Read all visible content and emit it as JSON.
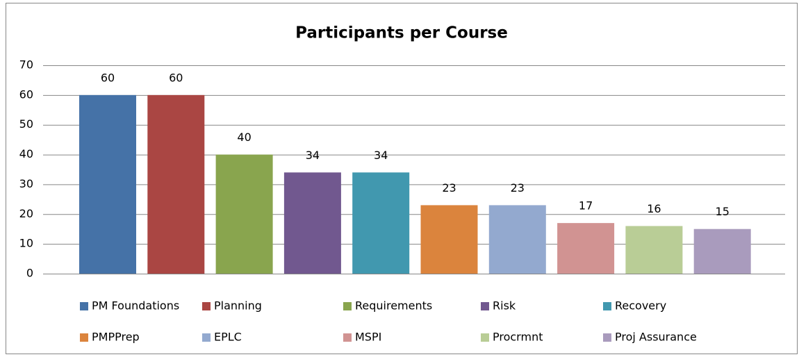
{
  "chart_data": {
    "type": "bar",
    "title": "Participants per Course",
    "series": [
      {
        "name": "PM Foundations",
        "color": "#4572a7",
        "values": [
          60
        ]
      },
      {
        "name": "Planning",
        "color": "#aa4643",
        "values": [
          60
        ]
      },
      {
        "name": "Requirements",
        "color": "#89a54e",
        "values": [
          40
        ]
      },
      {
        "name": "Risk",
        "color": "#71588f",
        "values": [
          34
        ]
      },
      {
        "name": "Recovery",
        "color": "#4198af",
        "values": [
          34
        ]
      },
      {
        "name": "PMPPrep",
        "color": "#db843d",
        "values": [
          23
        ]
      },
      {
        "name": "EPLC",
        "color": "#93a9cf",
        "values": [
          23
        ]
      },
      {
        "name": "MSPI",
        "color": "#d19392",
        "values": [
          17
        ]
      },
      {
        "name": "Procrmnt",
        "color": "#b9cd96",
        "values": [
          16
        ]
      },
      {
        "name": "Proj Assurance",
        "color": "#a99bbd",
        "values": [
          15
        ]
      }
    ],
    "ylim": [
      0,
      70
    ],
    "yticks": [
      0,
      10,
      20,
      30,
      40,
      50,
      60,
      70
    ],
    "grid": true,
    "legend": "bottom"
  }
}
